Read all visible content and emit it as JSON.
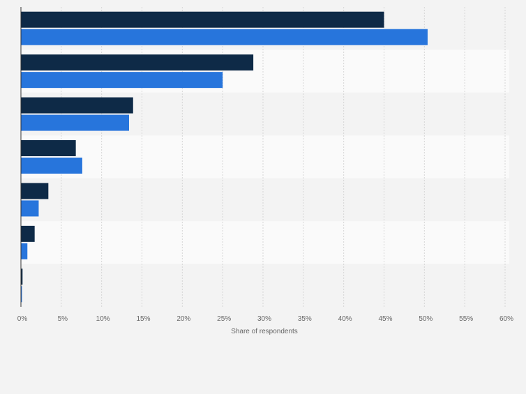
{
  "chart_data": {
    "type": "bar",
    "orientation": "horizontal",
    "categories": [
      "",
      "",
      "",
      "",
      "",
      "",
      ""
    ],
    "series": [
      {
        "values": [
          45.0,
          28.8,
          13.9,
          6.8,
          3.4,
          1.7,
          0.2
        ],
        "color": "#0e2a47"
      },
      {
        "values": [
          50.4,
          25.0,
          13.4,
          7.6,
          2.2,
          0.8,
          0.1
        ],
        "color": "#2775dc"
      }
    ],
    "xlabel": "Share of respondents",
    "ylabel": "",
    "xlim": [
      0,
      60
    ],
    "x_ticks": [
      "0%",
      "5%",
      "10%",
      "15%",
      "20%",
      "25%",
      "30%",
      "35%",
      "40%",
      "45%",
      "50%",
      "55%",
      "60%"
    ],
    "grid": true,
    "legend": "none"
  }
}
